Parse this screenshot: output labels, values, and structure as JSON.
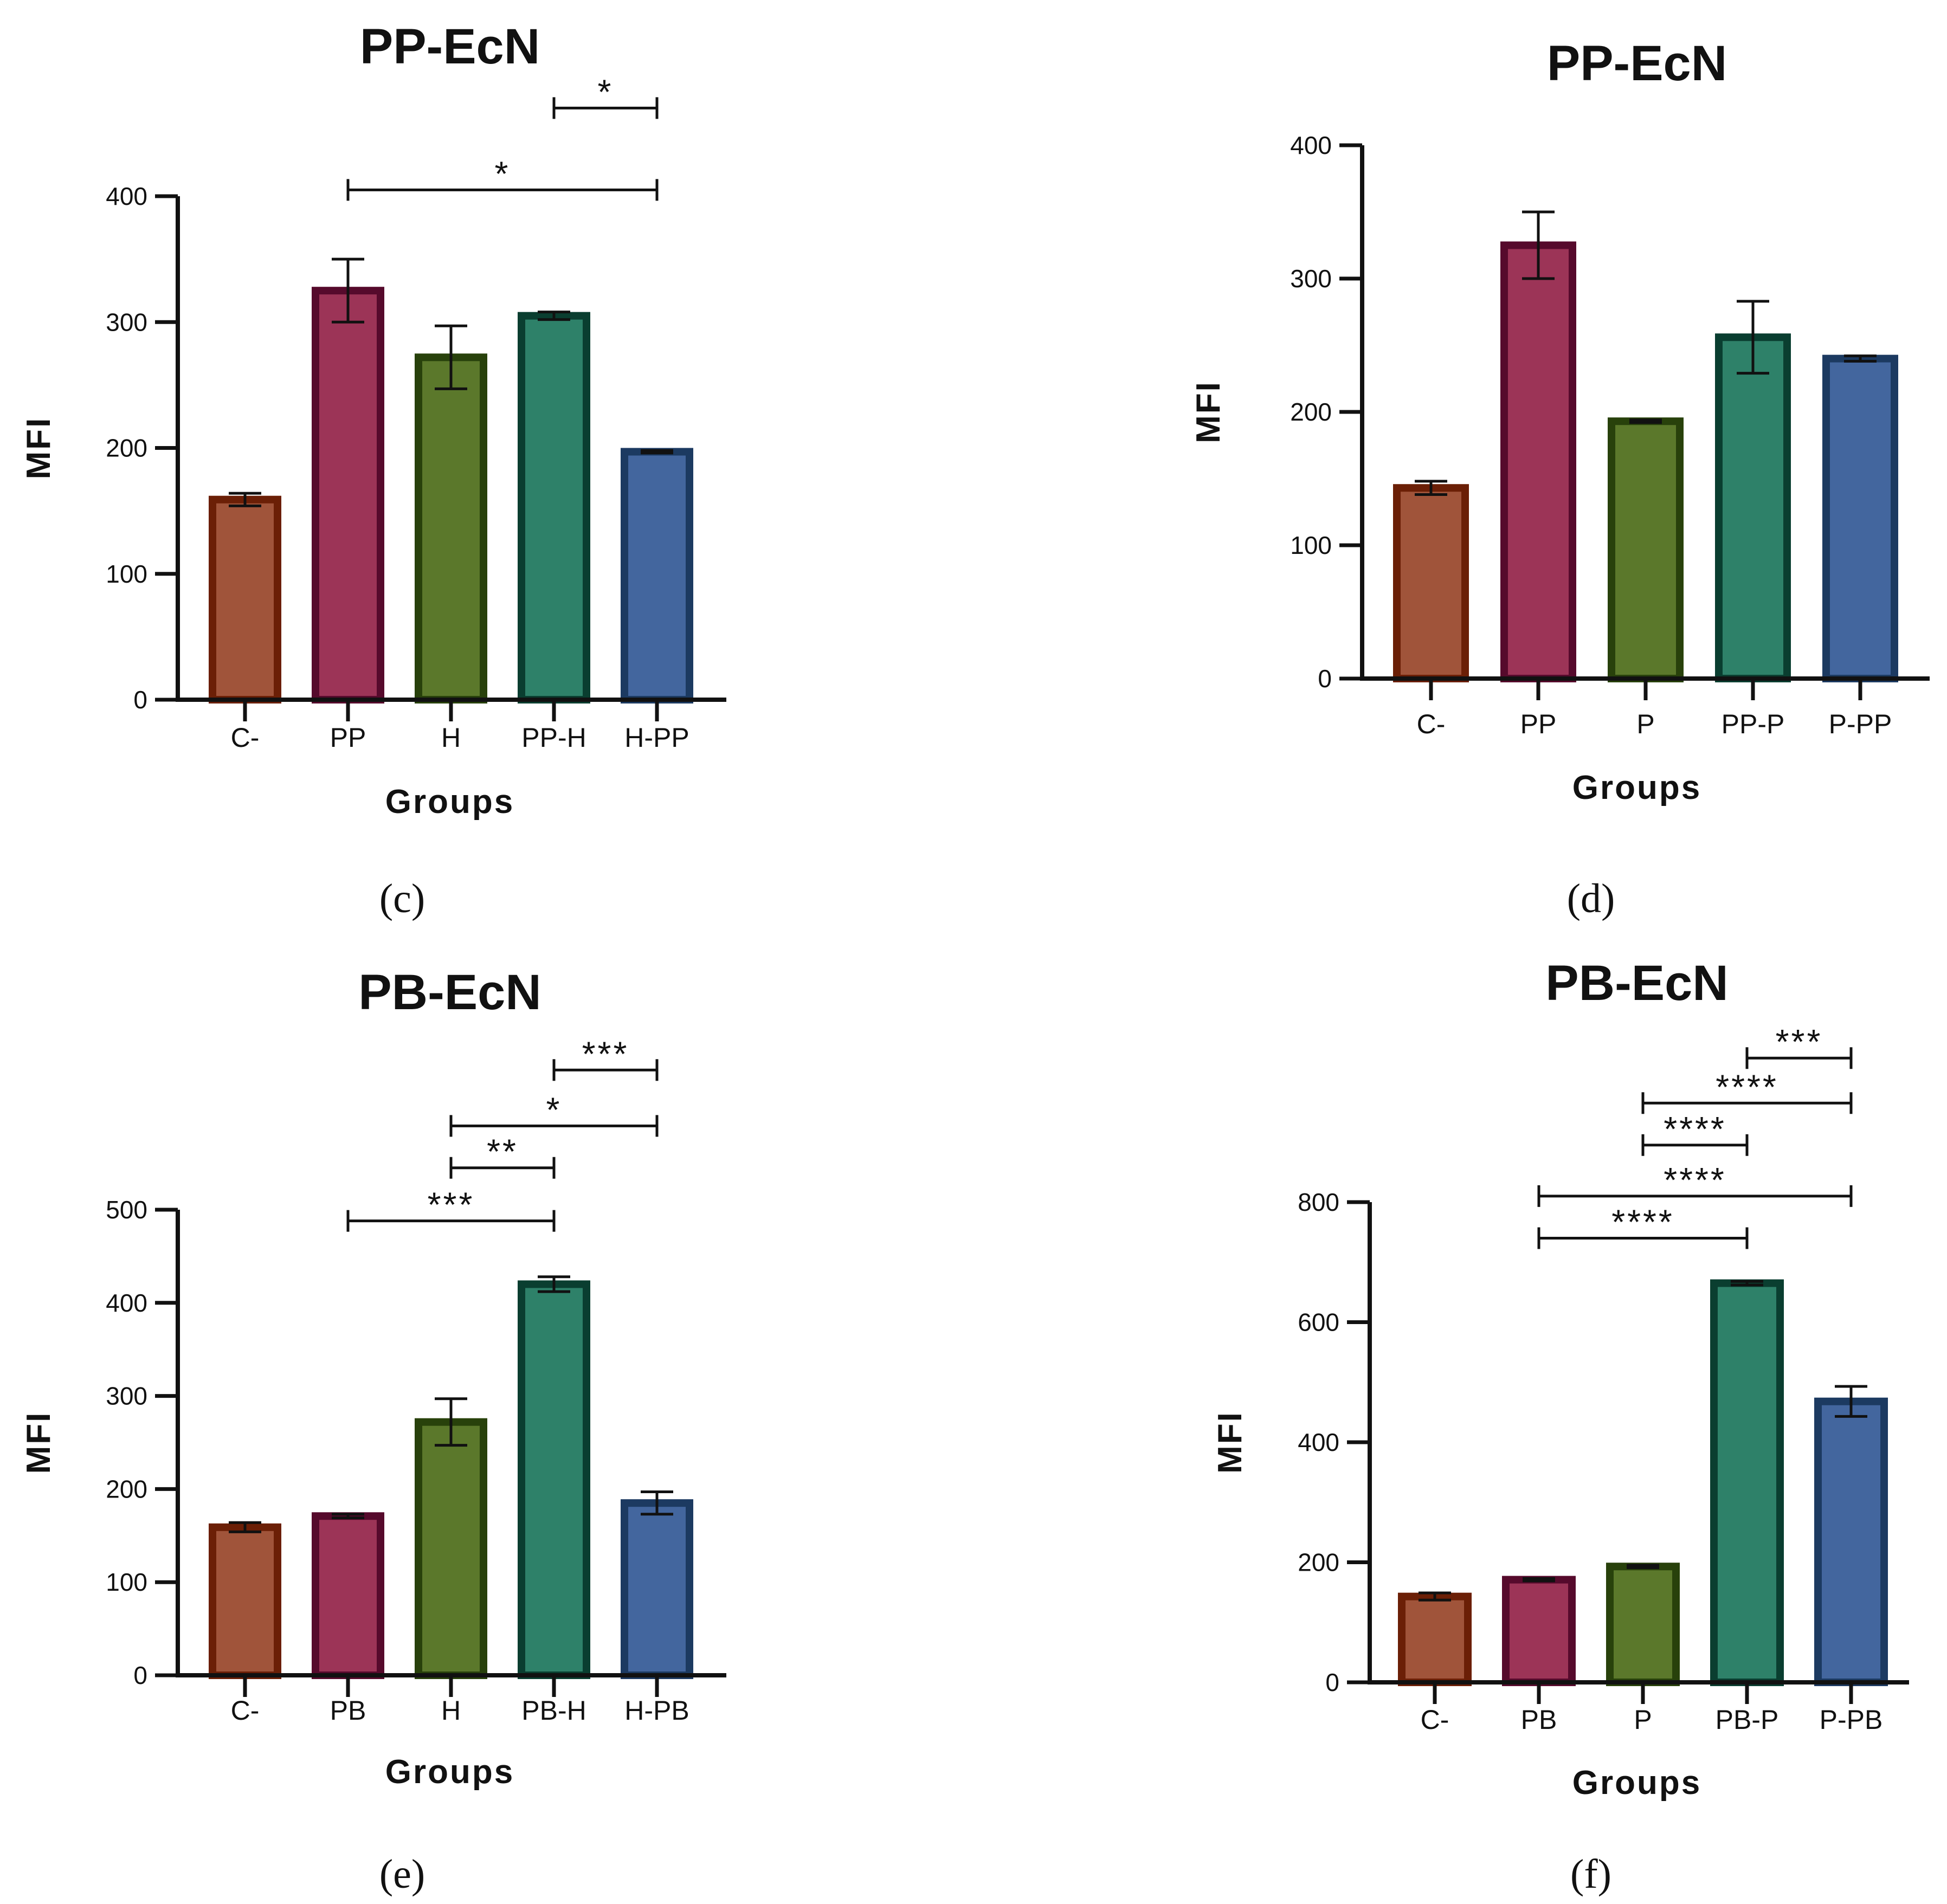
{
  "chart_data": [
    {
      "id": "c",
      "panel_label": "(c)",
      "type": "bar",
      "title": "PP-EcN",
      "xlabel": "Groups",
      "ylabel": "MFI",
      "categories": [
        "C-",
        "PP",
        "H",
        "PP-H",
        "H-PP"
      ],
      "values": [
        159,
        325,
        272,
        305,
        197
      ],
      "errors": [
        5,
        25,
        25,
        3,
        1
      ],
      "ylim": [
        0,
        400
      ],
      "yticks": [
        0,
        100,
        200,
        300,
        400
      ],
      "significance": [
        {
          "from": 3,
          "to": 4,
          "label": "*",
          "level": 470
        },
        {
          "from": 1,
          "to": 4,
          "label": "*",
          "level": 405
        }
      ]
    },
    {
      "id": "d",
      "panel_label": "(d)",
      "type": "bar",
      "title": "PP-EcN",
      "xlabel": "Groups",
      "ylabel": "MFI",
      "categories": [
        "C-",
        "PP",
        "P",
        "PP-P",
        "P-PP"
      ],
      "values": [
        143,
        325,
        193,
        256,
        240
      ],
      "errors": [
        5,
        25,
        1,
        27,
        2
      ],
      "ylim": [
        0,
        400
      ],
      "yticks": [
        0,
        100,
        200,
        300,
        400
      ],
      "significance": []
    },
    {
      "id": "e",
      "panel_label": "(e)",
      "type": "bar",
      "title": "PB-EcN",
      "xlabel": "Groups",
      "ylabel": "MFI",
      "categories": [
        "C-",
        "PB",
        "H",
        "PB-H",
        "H-PB"
      ],
      "values": [
        159,
        171,
        272,
        420,
        185
      ],
      "errors": [
        5,
        2,
        25,
        8,
        12
      ],
      "ylim": [
        0,
        500
      ],
      "yticks": [
        0,
        100,
        200,
        300,
        400,
        500
      ],
      "significance": [
        {
          "from": 3,
          "to": 4,
          "label": "***",
          "level": 650
        },
        {
          "from": 2,
          "to": 4,
          "label": "*",
          "level": 590
        },
        {
          "from": 2,
          "to": 3,
          "label": "**",
          "level": 545
        },
        {
          "from": 1,
          "to": 3,
          "label": "***",
          "level": 488
        }
      ]
    },
    {
      "id": "f",
      "panel_label": "(f)",
      "type": "bar",
      "title": "PB-EcN",
      "xlabel": "Groups",
      "ylabel": "MFI",
      "categories": [
        "C-",
        "PB",
        "P",
        "PB-P",
        "P-PB"
      ],
      "values": [
        143,
        171,
        193,
        665,
        468
      ],
      "errors": [
        6,
        2,
        2,
        3,
        25
      ],
      "ylim": [
        0,
        800
      ],
      "yticks": [
        0,
        200,
        400,
        600,
        800
      ],
      "significance": [
        {
          "from": 3,
          "to": 4,
          "label": "***",
          "level": 1040
        },
        {
          "from": 2,
          "to": 4,
          "label": "****",
          "level": 965
        },
        {
          "from": 2,
          "to": 3,
          "label": "****",
          "level": 895
        },
        {
          "from": 1,
          "to": 4,
          "label": "****",
          "level": 810
        },
        {
          "from": 1,
          "to": 3,
          "label": "****",
          "level": 740
        }
      ]
    }
  ],
  "bar_colors": {
    "fills": [
      "#a0543a",
      "#9c3457",
      "#5b782b",
      "#2e8169",
      "#43669e"
    ],
    "strokes": [
      "#6b1f06",
      "#560a2c",
      "#28410b",
      "#0a3e30",
      "#1c3a61"
    ]
  }
}
